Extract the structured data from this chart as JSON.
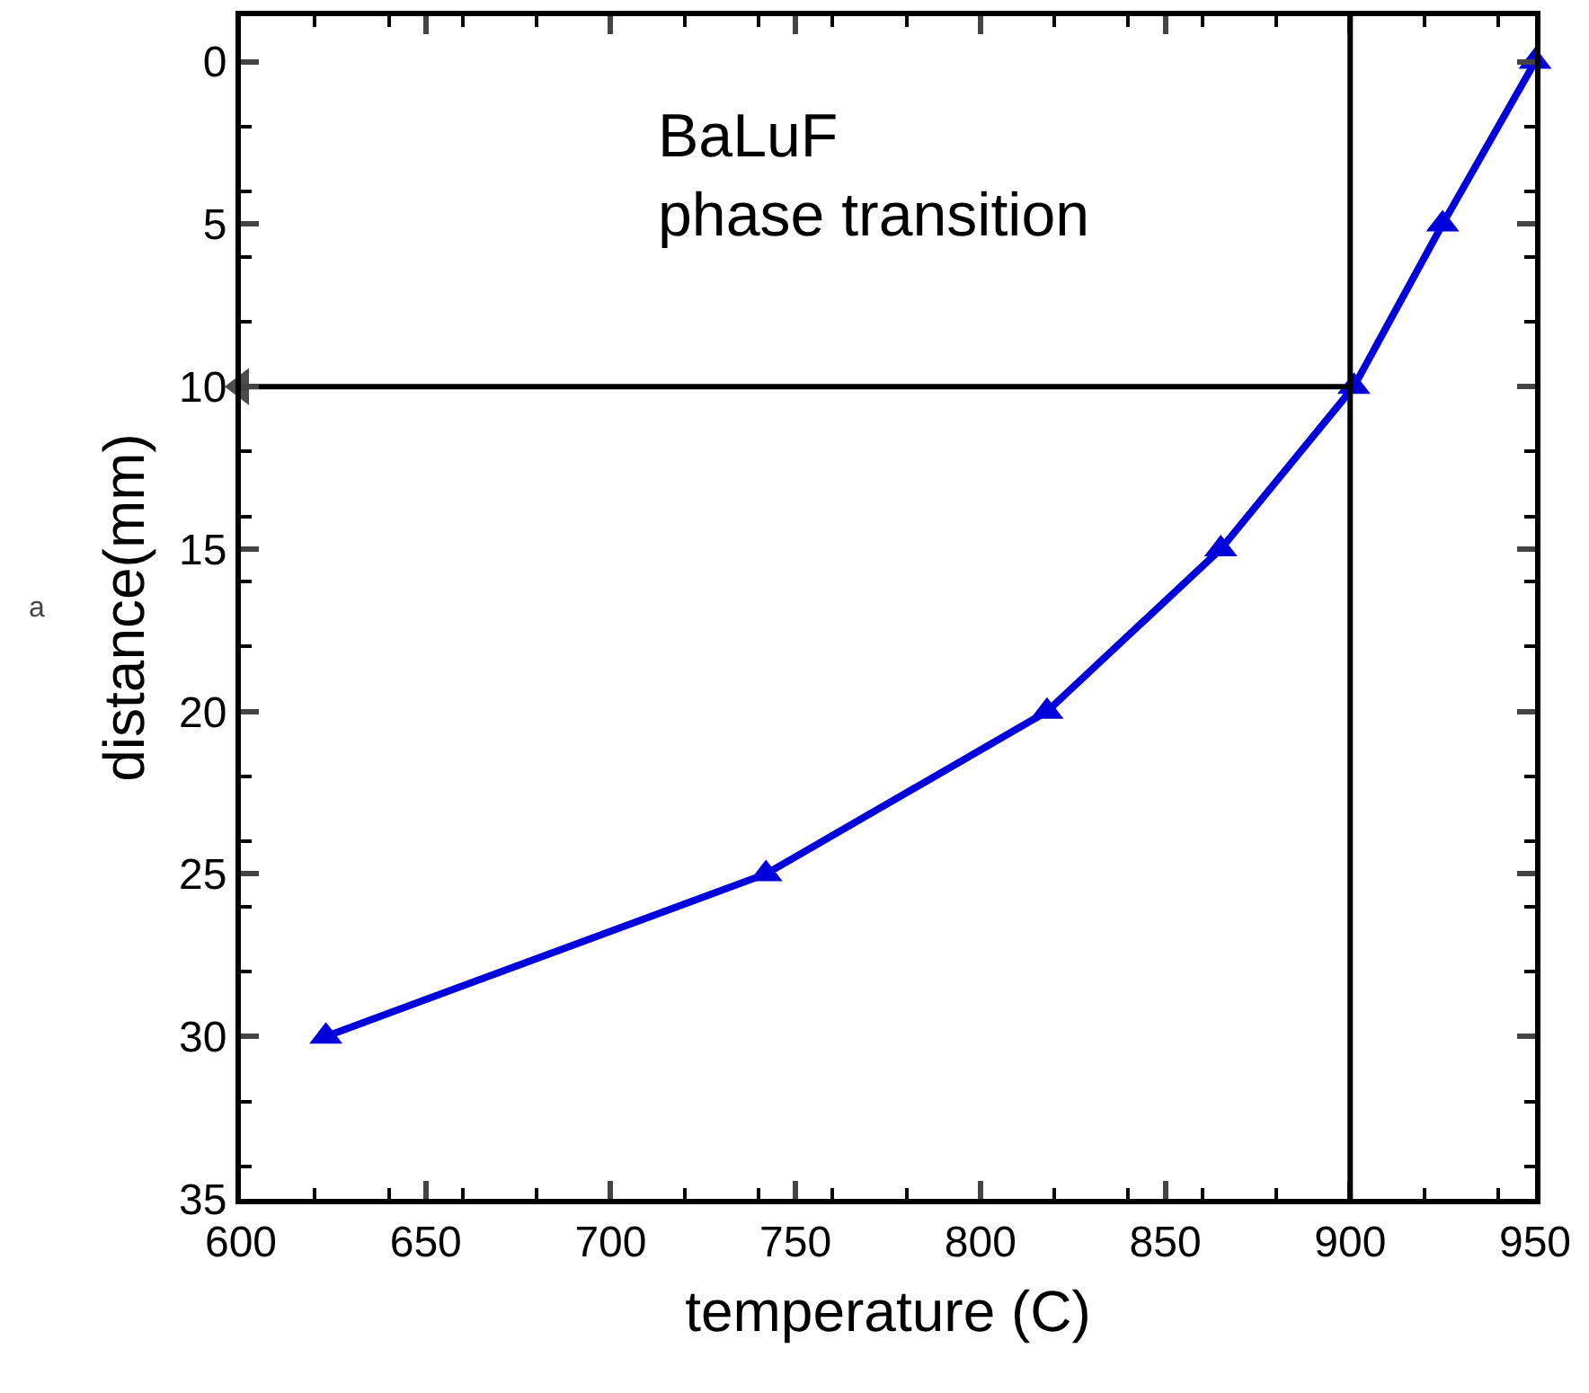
{
  "chart_data": {
    "type": "line",
    "xlabel": "temperature (C)",
    "ylabel": "distance(mm)",
    "x": [
      623,
      742,
      818,
      865,
      901,
      925,
      950
    ],
    "series": [
      {
        "color": "#0000dd",
        "values": [
          30,
          25,
          20,
          15,
          10,
          5,
          0
        ]
      },
      {
        "type": "line",
        "x": [
          600,
          900
        ],
        "values": [
          10,
          10
        ],
        "color": "#000000",
        "marker": "triangle"
      }
    ],
    "xlim": [
      600,
      950
    ],
    "xticks": [
      600,
      650,
      700,
      750,
      800,
      850,
      900,
      950
    ],
    "ylim": [
      35,
      -1.4
    ],
    "yticks": [
      0,
      5,
      10,
      15,
      20,
      25,
      30,
      35
    ],
    "ref_lines": [
      {
        "axis": "x",
        "value": 900,
        "color": "#000000"
      }
    ],
    "annotations": [
      "BaLuF\nphase transition",
      "a"
    ],
    "marker": "triangle"
  }
}
